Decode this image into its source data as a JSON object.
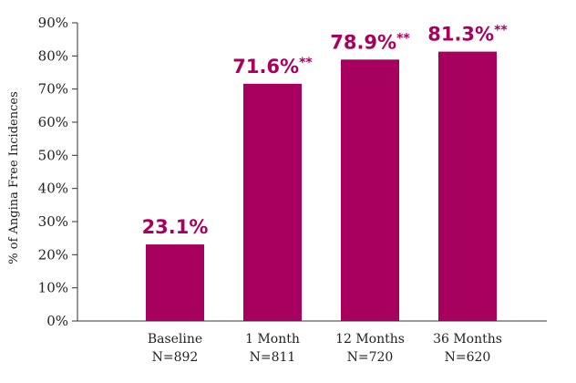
{
  "chart_data": {
    "type": "bar",
    "title": "",
    "xlabel": "",
    "ylabel": "% of Angina Free Incidences",
    "ylim": [
      0,
      90
    ],
    "yticks": [
      0,
      10,
      20,
      30,
      40,
      50,
      60,
      70,
      80,
      90
    ],
    "ytick_labels": [
      "0%",
      "10%",
      "20%",
      "30%",
      "40%",
      "50%",
      "60%",
      "70%",
      "80%",
      "90%"
    ],
    "categories": [
      {
        "line1": "Baseline",
        "line2": "N=892"
      },
      {
        "line1": "1 Month",
        "line2": "N=811"
      },
      {
        "line1": "12 Months",
        "line2": "N=720"
      },
      {
        "line1": "36 Months",
        "line2": "N=620"
      }
    ],
    "values": [
      23.1,
      71.6,
      78.9,
      81.3
    ],
    "data_labels": [
      "23.1%",
      "71.6%",
      "78.9%",
      "81.3%"
    ],
    "data_label_suffix": [
      "",
      "**",
      "**",
      "**"
    ],
    "grid": false,
    "legend": "none",
    "bar_color": "#a8005e",
    "label_color": "#a8005e",
    "axis_color": "#333333"
  }
}
